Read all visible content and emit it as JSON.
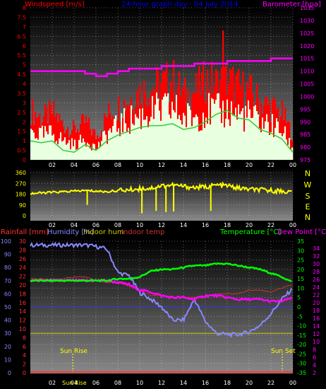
{
  "header": {
    "windspeed_label": "Windspeed [m/s]",
    "graph_title": "24-hour graph day : 04 July 2014",
    "barometer_label": "Barometer [hpa]"
  },
  "legend_mid": {
    "rainfall": "Rainfall [mm]",
    "humidity": "Humidity [%]",
    "indoor_hum": "Indoor hum",
    "indoor_temp": "Indoor temp",
    "temperature": "Temperature [°C]",
    "dew_point": "Dew Point [°C]"
  },
  "annotations": {
    "sun_rise": "Sun Rise",
    "sun_set": "Sun Set",
    "sun_rise_bottom": "Sun Rise"
  },
  "direction_letters": [
    "N",
    "W",
    "S",
    "E",
    "N"
  ],
  "colors": {
    "windspeed": "#ff0000",
    "gust_fill": "#e8ffe0",
    "wind_avg": "#33cc33",
    "barometer": "#ff00ff",
    "direction": "#ffff00",
    "humidity": "#8888ff",
    "temperature": "#00ff00",
    "dew_point": "#ff00ff",
    "rain": "#ff3333",
    "indoor_temp": "#cc3333",
    "indoor_hum": "#cccc00"
  },
  "chart_data": [
    {
      "type": "bar",
      "name": "wind",
      "title": "24-hour graph day : 04 July 2014",
      "ylabel_left": "Windspeed [m/s]",
      "ylabel_right": "Barometer [hpa]",
      "x_ticks": [
        "02",
        "04",
        "06",
        "08",
        "10",
        "12",
        "14",
        "16",
        "18",
        "20",
        "22",
        "00"
      ],
      "y_left_ticks": [
        "8",
        "7.5",
        "7",
        "6.5",
        "6",
        "5.5",
        "5",
        "4.5",
        "4",
        "3.5",
        "3",
        "2.5",
        "2",
        "1.5",
        "1",
        "0.5",
        "0"
      ],
      "y_left_range": [
        0,
        8
      ],
      "y_right_ticks": [
        "1035",
        "1030",
        "1025",
        "1020",
        "1015",
        "1010",
        "1005",
        "1000",
        "995",
        "990",
        "985",
        "980",
        "975"
      ],
      "y_right_range": [
        975,
        1035
      ],
      "hours": [
        0,
        1,
        2,
        3,
        4,
        5,
        6,
        7,
        8,
        9,
        10,
        11,
        12,
        13,
        14,
        15,
        16,
        17,
        18,
        19,
        20,
        21,
        22,
        23,
        24
      ],
      "gust": [
        2.6,
        2.2,
        2.5,
        1.8,
        1.6,
        2.0,
        1.2,
        2.4,
        2.8,
        3.2,
        3.6,
        3.8,
        4.0,
        4.2,
        3.4,
        3.6,
        4.2,
        4.0,
        4.2,
        3.8,
        3.6,
        3.0,
        2.8,
        2.4,
        1.2
      ],
      "speed": [
        1.5,
        1.3,
        1.4,
        1.0,
        0.8,
        1.1,
        0.6,
        1.4,
        1.8,
        2.1,
        2.3,
        2.5,
        2.6,
        2.7,
        2.2,
        2.3,
        2.6,
        2.5,
        2.6,
        2.4,
        2.3,
        2.0,
        1.8,
        1.5,
        0.5
      ],
      "average": [
        1.0,
        0.9,
        1.0,
        0.5,
        0.4,
        0.8,
        0.5,
        1.0,
        1.3,
        1.5,
        1.7,
        1.8,
        1.8,
        1.9,
        1.6,
        1.7,
        2.0,
        2.4,
        2.6,
        2.2,
        2.1,
        1.6,
        1.4,
        1.1,
        0.4
      ],
      "peak_gust": {
        "hour": 17.6,
        "value": 6.8
      },
      "barometer": [
        1010,
        1010,
        1010,
        1010,
        1010,
        1009,
        1008,
        1009,
        1010,
        1011,
        1011,
        1011,
        1012,
        1012,
        1012,
        1013,
        1013,
        1013,
        1014,
        1014,
        1014,
        1014,
        1015,
        1015,
        1015
      ]
    },
    {
      "type": "line",
      "name": "wind-direction",
      "x_ticks": [
        "02",
        "04",
        "06",
        "08",
        "10",
        "12",
        "14",
        "16",
        "18",
        "20",
        "22",
        "00"
      ],
      "y_ticks": [
        "360",
        "270",
        "180",
        "90",
        "0"
      ],
      "y_range": [
        0,
        360
      ],
      "hours": [
        0,
        1,
        2,
        3,
        4,
        5,
        6,
        7,
        8,
        9,
        10,
        11,
        12,
        13,
        14,
        15,
        16,
        17,
        18,
        19,
        20,
        21,
        22,
        23,
        24
      ],
      "direction": [
        185,
        190,
        195,
        200,
        205,
        210,
        205,
        200,
        210,
        215,
        225,
        230,
        250,
        255,
        245,
        235,
        240,
        255,
        250,
        230,
        220,
        215,
        210,
        205,
        195
      ],
      "dips": [
        [
          5.2,
          90
        ],
        [
          10.2,
          20
        ],
        [
          11.5,
          40
        ],
        [
          12.4,
          30
        ],
        [
          13.1,
          35
        ],
        [
          16.5,
          40
        ]
      ]
    },
    {
      "type": "line",
      "name": "temperature-humidity",
      "x_ticks": [
        "02",
        "04",
        "06",
        "08",
        "10",
        "12",
        "14",
        "16",
        "18",
        "20",
        "22",
        "00"
      ],
      "humidity_ticks": [
        "100",
        "90",
        "80",
        "70",
        "60",
        "50",
        "40",
        "30",
        "20",
        "10",
        "0"
      ],
      "humidity_range": [
        0,
        100
      ],
      "rain_ticks": [
        "30",
        "28",
        "26",
        "24",
        "22",
        "20",
        "18",
        "16",
        "14",
        "12",
        "10",
        "8",
        "6",
        "4",
        "2",
        "0"
      ],
      "rain_range": [
        0,
        30
      ],
      "temp_ticks": [
        "35",
        "30",
        "25",
        "20",
        "15",
        "10",
        "5",
        "0",
        "-5",
        "-10",
        "-15",
        "-20",
        "-25",
        "-30",
        "-35"
      ],
      "temp_range": [
        -35,
        35
      ],
      "dew_ticks": [
        "34",
        "32",
        "30",
        "28",
        "26",
        "24",
        "22",
        "20",
        "18",
        "16",
        "14",
        "12",
        "10",
        "8",
        "6",
        "4",
        "2"
      ],
      "hours": [
        0,
        1,
        2,
        3,
        4,
        5,
        6,
        7,
        8,
        9,
        10,
        11,
        12,
        13,
        14,
        15,
        16,
        17,
        18,
        19,
        20,
        21,
        22,
        23,
        24
      ],
      "humidity": [
        97,
        97,
        97,
        97,
        97,
        97,
        96,
        94,
        76,
        74,
        61,
        56,
        50,
        40,
        40,
        56,
        39,
        30,
        29,
        29,
        31,
        36,
        45,
        56,
        64
      ],
      "temperature": [
        14,
        14,
        14,
        14,
        14,
        14,
        14,
        14,
        15,
        15,
        16,
        19,
        20,
        20,
        21,
        22,
        22,
        23,
        23,
        22,
        21,
        20,
        18,
        16,
        13
      ],
      "dew_point": [
        14,
        14,
        14,
        14,
        14,
        14,
        14,
        14,
        13,
        12,
        9,
        8,
        6,
        5,
        5,
        4,
        6,
        6,
        5,
        4,
        4,
        4,
        3,
        3,
        5
      ],
      "indoor_temp": [
        15,
        15,
        14,
        15,
        16,
        16,
        14,
        13,
        13,
        11,
        9,
        6,
        6,
        5,
        5,
        5,
        6,
        7,
        7,
        7,
        9,
        9,
        8,
        10,
        12
      ],
      "indoor_hum_level": 30,
      "rainfall": [
        0,
        0,
        0,
        0,
        0,
        0,
        0,
        0,
        0,
        0,
        0,
        0,
        0,
        0,
        0,
        0,
        0,
        0,
        0,
        0,
        0,
        0,
        0,
        0,
        0
      ]
    }
  ]
}
